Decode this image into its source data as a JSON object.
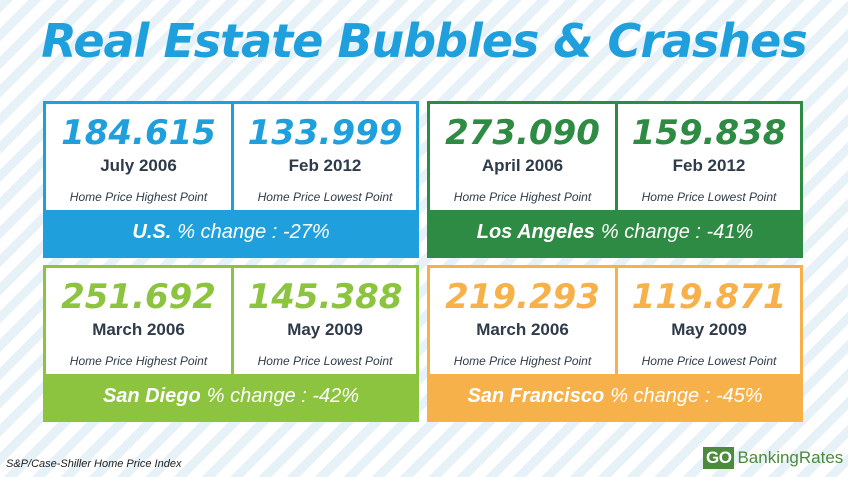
{
  "title": "Real Estate Bubbles & Crashes",
  "colors": {
    "title": "#1fa0dd",
    "us": "#1fa0dd",
    "la": "#2e8b43",
    "sd": "#8cc43f",
    "sf": "#f7b14a",
    "dark_text": "#2f3b4a",
    "logo_green": "#4b8b3b"
  },
  "cards": {
    "us": {
      "high_value": "184.615",
      "high_date": "July 2006",
      "high_label": "Home Price Highest Point",
      "low_value": "133.999",
      "low_date": "Feb 2012",
      "low_label": "Home Price Lowest Point",
      "region": "U.S.",
      "change": "% change : -27%"
    },
    "la": {
      "high_value": "273.090",
      "high_date": "April 2006",
      "high_label": "Home Price Highest Point",
      "low_value": "159.838",
      "low_date": "Feb 2012",
      "low_label": "Home Price Lowest Point",
      "region": "Los Angeles",
      "change": "% change : -41%"
    },
    "sd": {
      "high_value": "251.692",
      "high_date": "March 2006",
      "high_label": "Home Price Highest Point",
      "low_value": "145.388",
      "low_date": "May 2009",
      "low_label": "Home Price Lowest Point",
      "region": "San Diego",
      "change": "% change : -42%"
    },
    "sf": {
      "high_value": "219.293",
      "high_date": "March 2006",
      "high_label": "Home Price Highest Point",
      "low_value": "119.871",
      "low_date": "May 2009",
      "low_label": "Home Price Lowest Point",
      "region": "San Francisco",
      "change": "% change : -45%"
    }
  },
  "footnote": "S&P/Case-Shiller Home Price Index",
  "logo": {
    "prefix": "GO",
    "name": "BankingRates"
  }
}
